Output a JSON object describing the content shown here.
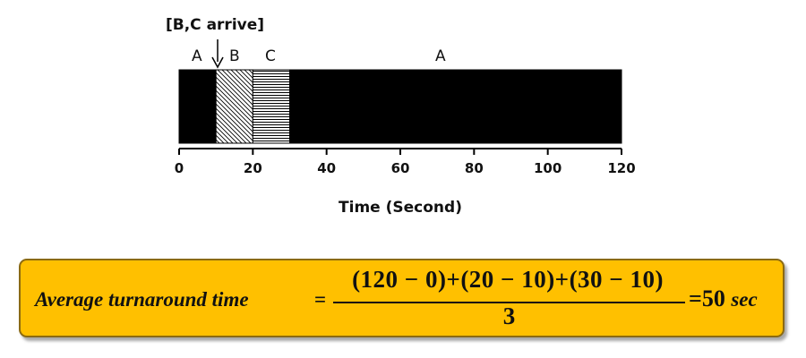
{
  "diagram": {
    "arrival_annotation": "[B,C arrive]",
    "arrival_time": 10,
    "axis": {
      "title": "Time (Second)",
      "min": 0,
      "max": 120,
      "ticks": [
        "0",
        "20",
        "40",
        "60",
        "80",
        "100",
        "120"
      ]
    },
    "segments": [
      {
        "job": "A",
        "start": 0,
        "end": 10,
        "fill": "solid",
        "color": "#000000"
      },
      {
        "job": "B",
        "start": 10,
        "end": 20,
        "fill": "diagonal-hatch",
        "color": "#000000"
      },
      {
        "job": "C",
        "start": 20,
        "end": 30,
        "fill": "horizontal-hatch",
        "color": "#000000"
      },
      {
        "job": "A",
        "start": 30,
        "end": 120,
        "fill": "solid",
        "color": "#000000"
      }
    ]
  },
  "formula": {
    "lhs": "Average turnaround time",
    "eq": "=",
    "numerator": "(120 − 0)+(20 − 10)+(30 − 10)",
    "denominator": "3",
    "result": "=50",
    "unit": "sec",
    "box_color": "#ffc000"
  }
}
